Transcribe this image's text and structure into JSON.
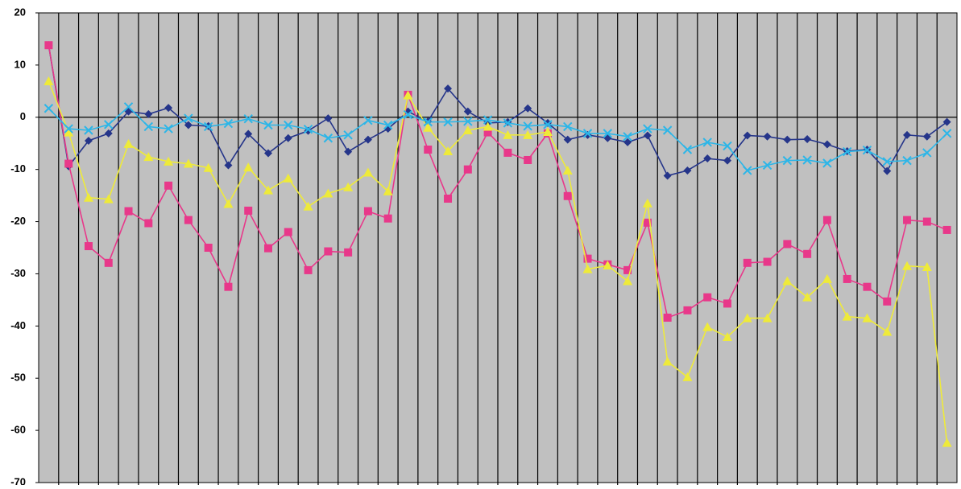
{
  "chart_data": {
    "type": "line",
    "categories": [
      null,
      null,
      null,
      null,
      null,
      null,
      null,
      null,
      null,
      null,
      null,
      null,
      null,
      null,
      null,
      null,
      null,
      null,
      null,
      null,
      null,
      null,
      null,
      null,
      null,
      null,
      null,
      null,
      null,
      null,
      null,
      null,
      null,
      null,
      null,
      null,
      null,
      null,
      null,
      null,
      null,
      null,
      null,
      null,
      null,
      null
    ],
    "series": [
      {
        "color": "#25358a",
        "marker": "diamond",
        "values": [
          13.8,
          -9.4,
          -4.5,
          -3.1,
          1.1,
          0.6,
          1.8,
          -1.5,
          -1.7,
          -9.2,
          -3.2,
          -6.9,
          -4.0,
          -2.6,
          -0.2,
          -6.6,
          -4.3,
          -2.2,
          1.1,
          -0.8,
          5.5,
          1.1,
          -1.1,
          -0.9,
          1.7,
          -1.1,
          -4.3,
          -3.4,
          -4.0,
          -4.8,
          -3.5,
          -11.2,
          -10.2,
          -7.9,
          -8.3,
          -3.5,
          -3.7,
          -4.3,
          -4.2,
          -5.2,
          -6.5,
          -6.2,
          -10.3,
          -3.4,
          -3.7,
          -0.9
        ]
      },
      {
        "color": "#e8388a",
        "marker": "square",
        "values": [
          13.8,
          -8.9,
          -24.7,
          -27.9,
          -18.0,
          -20.3,
          -13.1,
          -19.7,
          -25.0,
          -32.5,
          -17.9,
          -25.1,
          -22.0,
          -29.3,
          -25.7,
          -25.9,
          -18.0,
          -19.4,
          4.3,
          -6.2,
          -15.6,
          -10.0,
          -2.9,
          -6.8,
          -8.2,
          -3.1,
          -15.1,
          -27.1,
          -28.2,
          -29.3,
          -20.2,
          -38.4,
          -37.0,
          -34.5,
          -35.7,
          -27.9,
          -27.7,
          -24.3,
          -26.2,
          -19.7,
          -31.0,
          -32.5,
          -35.3,
          -19.7,
          -20.0,
          -21.6
        ]
      },
      {
        "color": "#eeea3a",
        "marker": "triangle",
        "values": [
          6.9,
          -2.9,
          -15.4,
          -15.7,
          -5.1,
          -7.6,
          -8.5,
          -8.9,
          -9.7,
          -16.6,
          -9.6,
          -14.0,
          -11.7,
          -17.1,
          -14.6,
          -13.4,
          -10.6,
          -14.2,
          4.2,
          -2.0,
          -6.5,
          -2.5,
          -1.8,
          -3.4,
          -3.4,
          -2.8,
          -10.2,
          -29.1,
          -28.4,
          -31.4,
          -16.5,
          -46.8,
          -49.8,
          -40.2,
          -42.1,
          -38.5,
          -38.5,
          -31.4,
          -34.5,
          -31.0,
          -38.2,
          -38.5,
          -41.1,
          -28.5,
          -28.7,
          -62.4
        ]
      },
      {
        "color": "#2cb6e8",
        "marker": "x",
        "values": [
          1.7,
          -2.2,
          -2.5,
          -1.4,
          2.0,
          -1.8,
          -2.2,
          -0.2,
          -1.8,
          -1.2,
          -0.3,
          -1.5,
          -1.5,
          -2.3,
          -4.0,
          -3.4,
          -0.6,
          -1.5,
          0.5,
          -0.9,
          -0.9,
          -0.8,
          -0.5,
          -1.1,
          -1.7,
          -1.4,
          -1.8,
          -3.1,
          -3.1,
          -3.7,
          -2.2,
          -2.5,
          -6.2,
          -4.8,
          -5.5,
          -10.2,
          -9.2,
          -8.3,
          -8.2,
          -8.8,
          -6.6,
          -6.3,
          -8.5,
          -8.3,
          -6.8,
          -3.1
        ]
      }
    ],
    "ylim": [
      -70,
      20
    ],
    "yticks": [
      -70,
      -60,
      -50,
      -40,
      -30,
      -20,
      -10,
      0,
      10,
      20
    ],
    "plot_background": "#c0c0c0",
    "vertical_grid": true
  }
}
